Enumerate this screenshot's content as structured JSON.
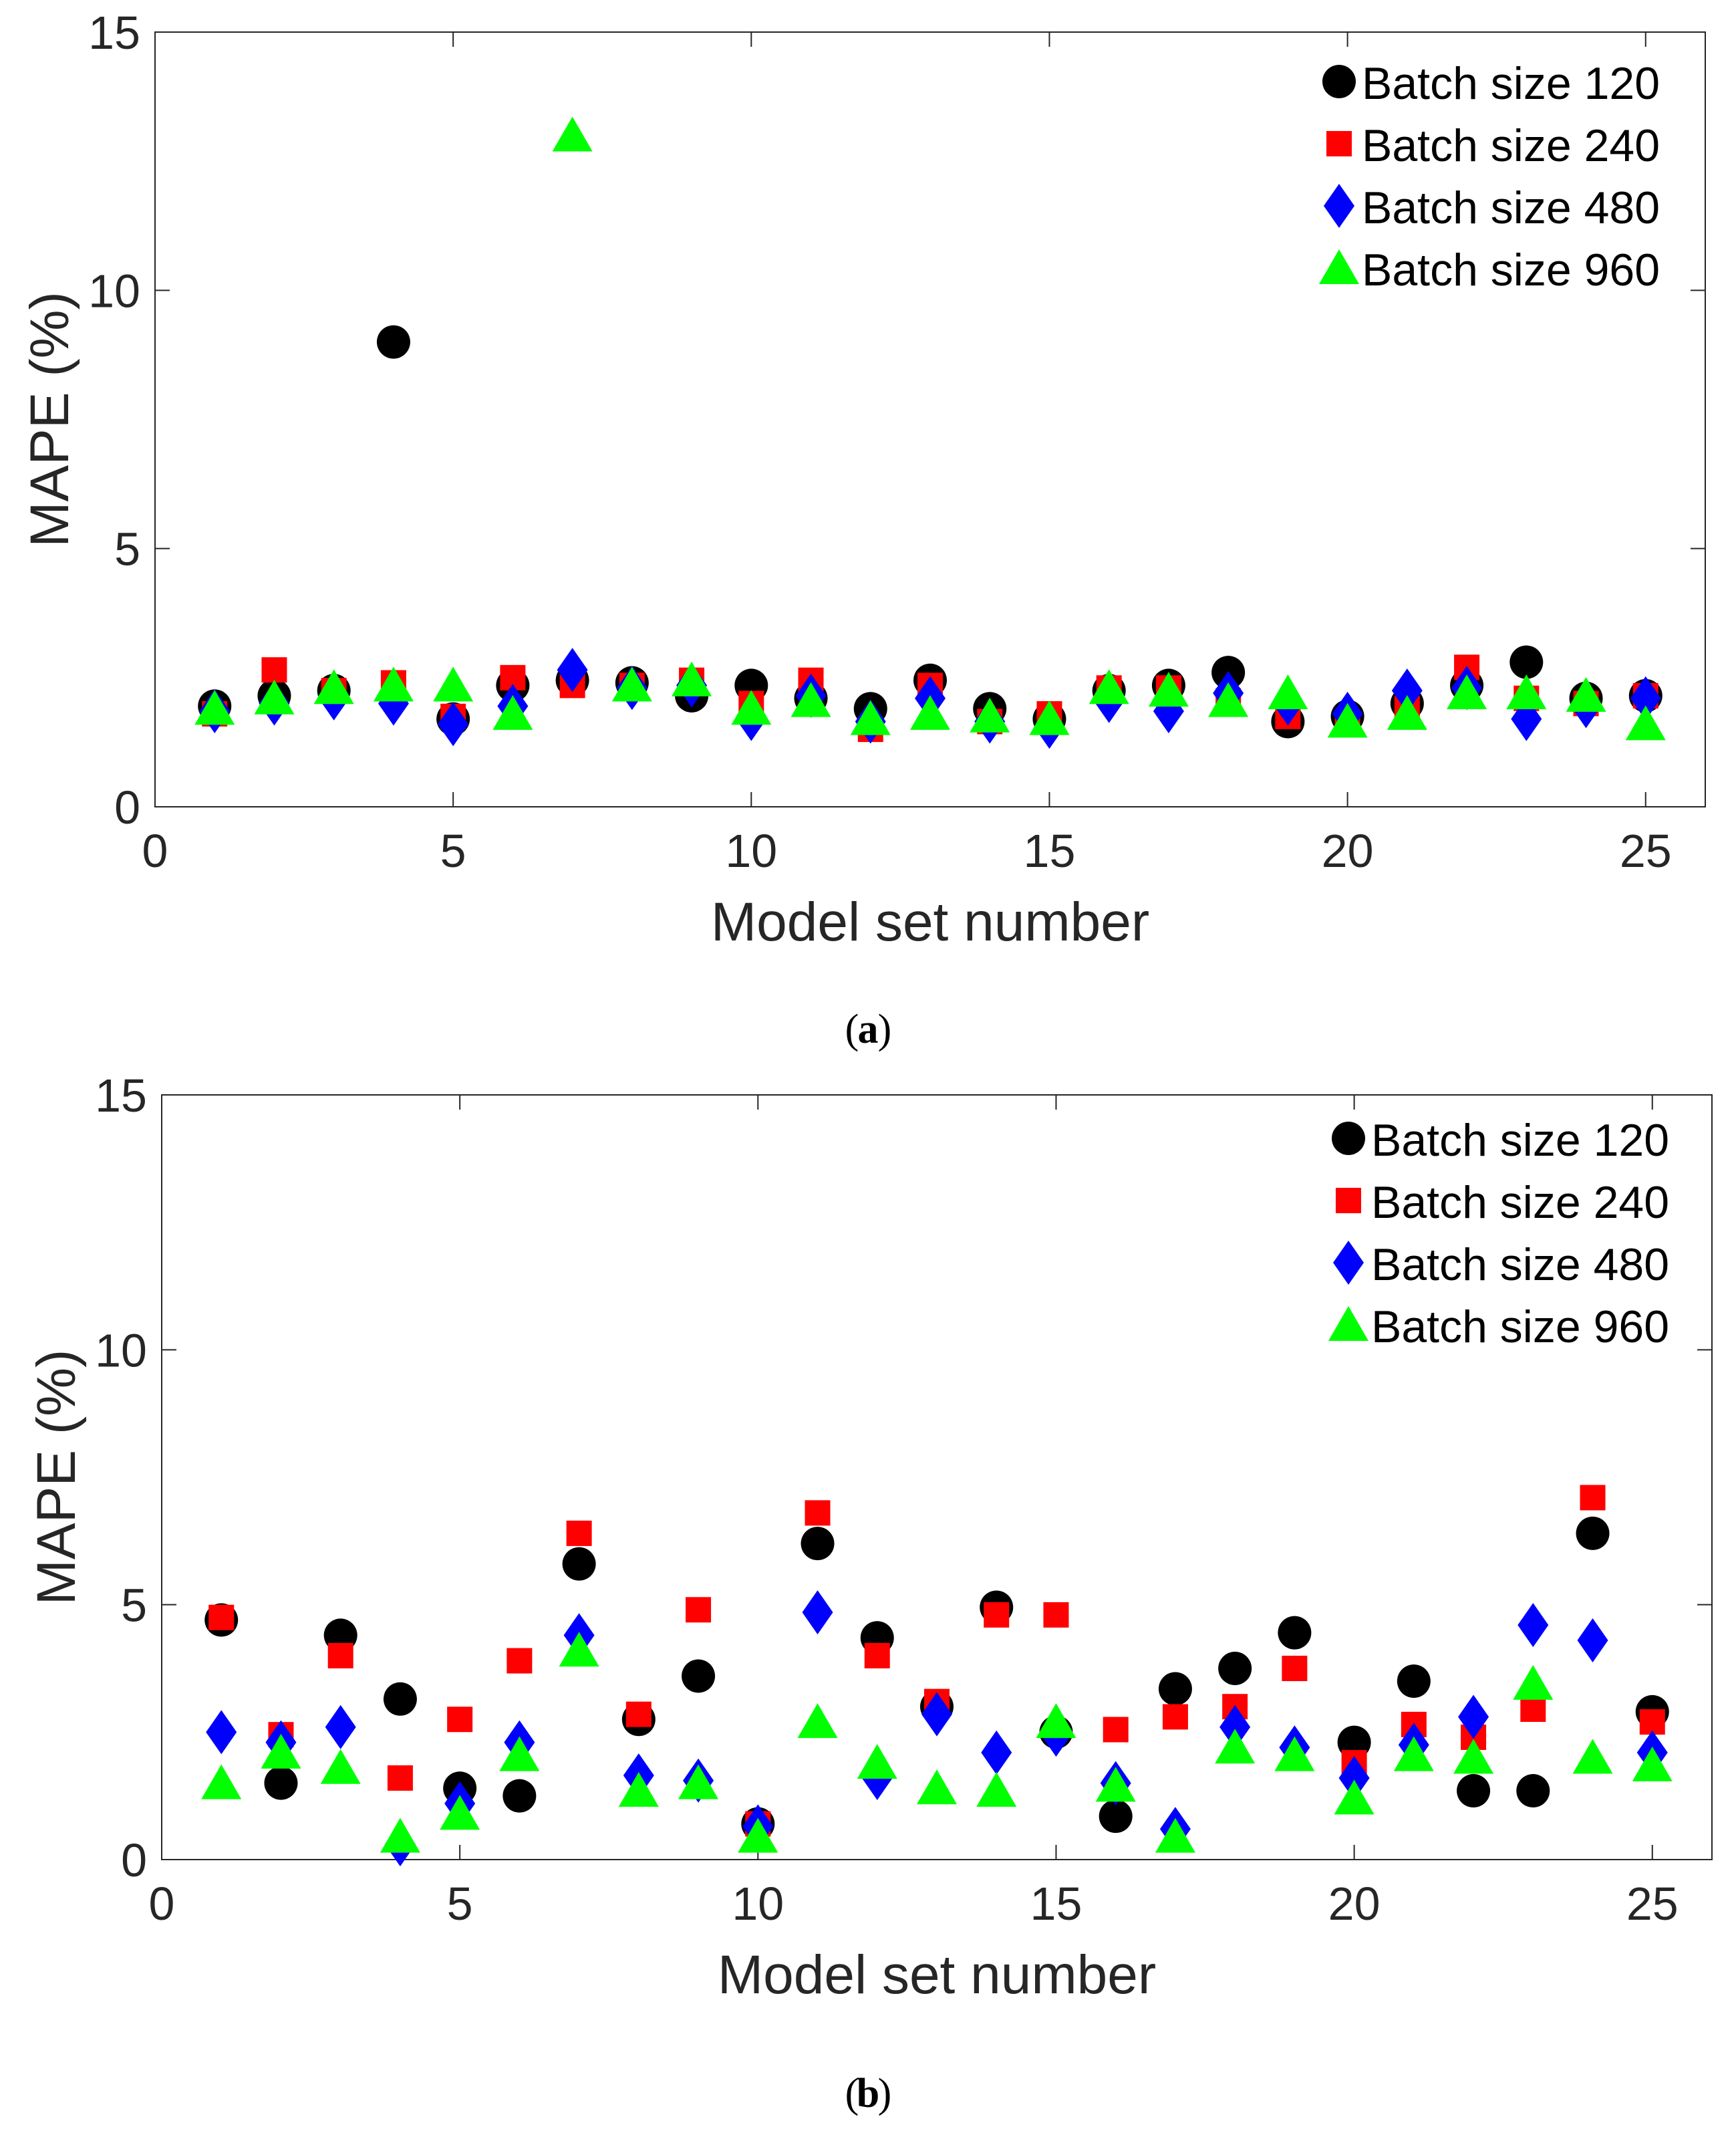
{
  "chart_data": [
    {
      "type": "scatter",
      "panel_label": "a",
      "xlabel": "Model set number",
      "ylabel": "MAPE (%)",
      "xlim": [
        0,
        26
      ],
      "ylim": [
        0,
        15
      ],
      "xticks": [
        0,
        5,
        10,
        15,
        20,
        25
      ],
      "yticks": [
        0,
        5,
        10,
        15
      ],
      "legend_position": "top-right",
      "x": [
        1,
        2,
        3,
        4,
        5,
        6,
        7,
        8,
        9,
        10,
        11,
        12,
        13,
        14,
        15,
        16,
        17,
        18,
        19,
        20,
        21,
        22,
        23,
        24,
        25
      ],
      "series": [
        {
          "name": "Batch size 120",
          "marker": "circle",
          "color": "#000000",
          "values": [
            1.95,
            2.15,
            2.25,
            9.0,
            1.7,
            2.35,
            2.45,
            2.4,
            2.15,
            2.35,
            2.1,
            1.9,
            2.45,
            1.9,
            1.7,
            2.25,
            2.35,
            2.6,
            1.65,
            1.75,
            2.0,
            2.35,
            2.8,
            2.1,
            2.15
          ]
        },
        {
          "name": "Batch size 240",
          "marker": "square",
          "color": "#ff0000",
          "values": [
            1.8,
            2.65,
            2.25,
            2.4,
            1.75,
            2.5,
            2.35,
            2.35,
            2.45,
            2.0,
            2.45,
            1.5,
            2.35,
            1.65,
            1.8,
            2.3,
            2.3,
            2.05,
            1.75,
            1.6,
            1.9,
            2.7,
            2.1,
            2.0,
            2.15
          ]
        },
        {
          "name": "Batch size 480",
          "marker": "diamond",
          "color": "#0000ff",
          "values": [
            1.85,
            2.0,
            2.1,
            2.0,
            1.6,
            1.95,
            2.65,
            2.3,
            2.35,
            1.7,
            2.15,
            1.65,
            2.1,
            1.65,
            1.55,
            2.05,
            1.85,
            2.2,
            2.0,
            1.8,
            2.25,
            2.3,
            1.7,
            1.95,
            2.1
          ]
        },
        {
          "name": "Batch size 960",
          "marker": "triangle",
          "color": "#00ff00",
          "values": [
            1.9,
            2.1,
            2.3,
            2.35,
            2.35,
            1.8,
            13.0,
            2.35,
            2.45,
            1.9,
            2.05,
            1.7,
            1.8,
            1.75,
            1.7,
            2.3,
            2.25,
            2.05,
            2.2,
            1.65,
            1.8,
            2.2,
            2.2,
            2.15,
            1.6
          ]
        }
      ]
    },
    {
      "type": "scatter",
      "panel_label": "b",
      "xlabel": "Model set number",
      "ylabel": "MAPE (%)",
      "xlim": [
        0,
        26
      ],
      "ylim": [
        0,
        15
      ],
      "xticks": [
        0,
        5,
        10,
        15,
        20,
        25
      ],
      "yticks": [
        0,
        5,
        10,
        15
      ],
      "legend_position": "top-right",
      "x": [
        1,
        2,
        3,
        4,
        5,
        6,
        7,
        8,
        9,
        10,
        11,
        12,
        13,
        14,
        15,
        16,
        17,
        18,
        19,
        20,
        21,
        22,
        23,
        24,
        25
      ],
      "series": [
        {
          "name": "Batch size 120",
          "marker": "circle",
          "color": "#000000",
          "values": [
            4.7,
            1.5,
            4.4,
            3.15,
            1.4,
            1.25,
            5.8,
            2.75,
            3.6,
            0.7,
            6.2,
            4.35,
            3.0,
            4.95,
            2.5,
            0.85,
            3.35,
            3.75,
            4.45,
            2.3,
            3.5,
            1.35,
            1.35,
            6.4,
            2.9
          ]
        },
        {
          "name": "Batch size 240",
          "marker": "square",
          "color": "#ff0000",
          "values": [
            4.75,
            2.45,
            4.0,
            1.6,
            2.75,
            3.9,
            6.4,
            2.85,
            4.9,
            0.7,
            6.8,
            4.0,
            3.1,
            4.8,
            4.8,
            2.55,
            2.8,
            3.0,
            3.75,
            1.9,
            2.65,
            2.4,
            2.95,
            7.1,
            2.7
          ]
        },
        {
          "name": "Batch size 480",
          "marker": "diamond",
          "color": "#0000ff",
          "values": [
            2.5,
            2.3,
            2.6,
            0.3,
            1.1,
            2.3,
            4.4,
            1.65,
            1.55,
            0.65,
            4.85,
            1.6,
            2.85,
            2.1,
            2.45,
            1.5,
            0.6,
            2.6,
            2.2,
            1.6,
            2.25,
            2.8,
            4.6,
            4.3,
            2.1
          ]
        },
        {
          "name": "Batch size 960",
          "marker": "triangle",
          "color": "#00ff00",
          "values": [
            1.5,
            2.1,
            1.8,
            0.45,
            0.9,
            2.05,
            4.1,
            1.35,
            1.5,
            0.45,
            2.7,
            1.9,
            1.4,
            1.35,
            2.7,
            1.45,
            0.45,
            2.2,
            2.05,
            1.2,
            2.05,
            2.0,
            3.45,
            2.0,
            1.85
          ]
        }
      ]
    }
  ],
  "captions": {
    "a": "a",
    "b": "b"
  }
}
